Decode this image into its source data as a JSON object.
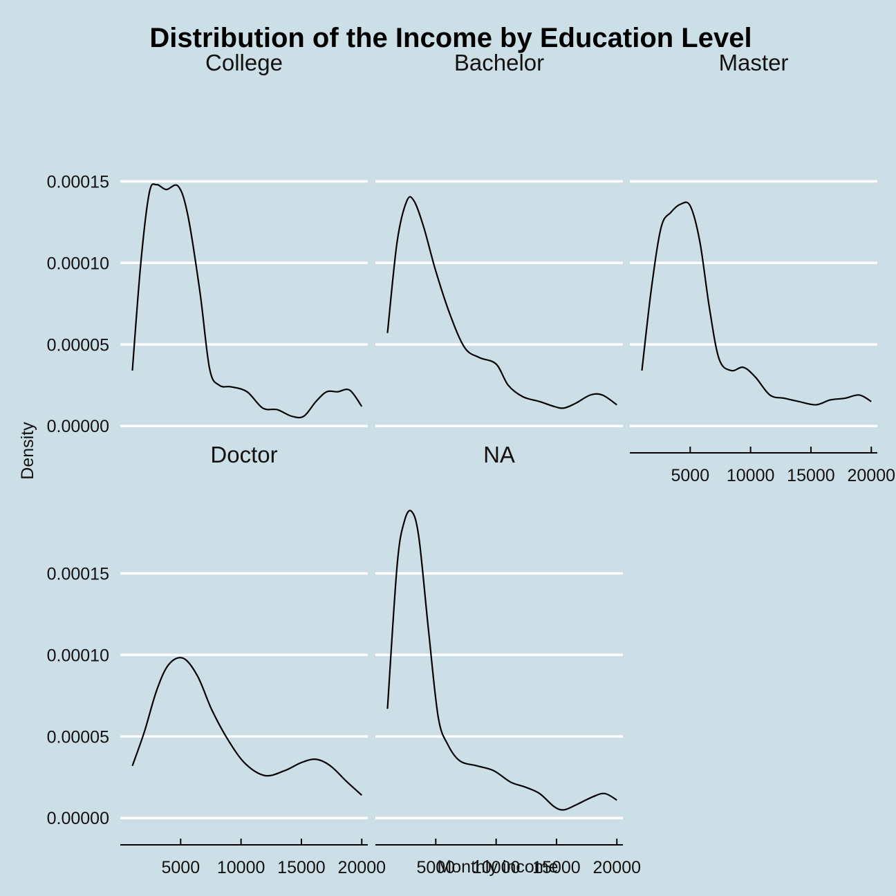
{
  "chart_data": {
    "type": "line",
    "title": "Distribution of the Income by Education Level",
    "xlabel": "Monthly income",
    "ylabel": "Density",
    "xlim": [
      0,
      20500
    ],
    "ylim": [
      -5e-06,
      0.00019
    ],
    "x_ticks": [
      5000,
      10000,
      15000,
      20000
    ],
    "x_tick_labels": [
      "5000",
      "10000",
      "15000",
      "20000"
    ],
    "y_ticks": [
      0,
      5e-05,
      0.0001,
      0.00015
    ],
    "y_tick_labels": [
      "0.00000",
      "0.00005",
      "0.00010",
      "0.00015"
    ],
    "grid": "horizontal major lines, white",
    "line_color": "#000000",
    "background_color": "#cddfe6",
    "grid_color": "#ffffff",
    "panels": [
      {
        "name": "College",
        "x": [
          1000,
          1700,
          2400,
          3000,
          3800,
          4800,
          5600,
          6600,
          7400,
          8200,
          9200,
          10500,
          11800,
          13000,
          14200,
          15200,
          16200,
          17100,
          18000,
          19000,
          20000
        ],
        "y": [
          3.4e-05,
          0.0001,
          0.000143,
          0.000148,
          0.000145,
          0.000147,
          0.000129,
          8.2e-05,
          3.5e-05,
          2.5e-05,
          2.4e-05,
          2.1e-05,
          1.1e-05,
          1e-05,
          6e-06,
          6e-06,
          1.5e-05,
          2.1e-05,
          2.1e-05,
          2.2e-05,
          1.2e-05
        ]
      },
      {
        "name": "Bachelor",
        "x": [
          1000,
          1800,
          2600,
          3200,
          4000,
          5000,
          6200,
          7400,
          8600,
          10000,
          11000,
          12200,
          13600,
          14800,
          15600,
          16600,
          17800,
          18800,
          20000
        ],
        "y": [
          5.7e-05,
          0.000113,
          0.000138,
          0.000138,
          0.000122,
          9.5e-05,
          6.8e-05,
          4.8e-05,
          4.2e-05,
          3.8e-05,
          2.5e-05,
          1.8e-05,
          1.5e-05,
          1.2e-05,
          1.1e-05,
          1.4e-05,
          1.9e-05,
          1.9e-05,
          1.3e-05
        ]
      },
      {
        "name": "Master",
        "x": [
          1000,
          1800,
          2600,
          3400,
          4200,
          5000,
          5800,
          6600,
          7400,
          8400,
          9400,
          10400,
          11600,
          12800,
          14000,
          15400,
          16600,
          17800,
          19000,
          20000
        ],
        "y": [
          3.4e-05,
          8.5e-05,
          0.000122,
          0.000131,
          0.000136,
          0.000135,
          0.000113,
          7.2e-05,
          4.1e-05,
          3.4e-05,
          3.6e-05,
          3e-05,
          1.9e-05,
          1.7e-05,
          1.5e-05,
          1.3e-05,
          1.6e-05,
          1.7e-05,
          1.9e-05,
          1.5e-05
        ]
      },
      {
        "name": "Doctor",
        "x": [
          1000,
          2000,
          3000,
          4000,
          5200,
          6400,
          7600,
          9000,
          10400,
          12000,
          13600,
          15000,
          16200,
          17400,
          18800,
          20000
        ],
        "y": [
          3.2e-05,
          5.3e-05,
          7.8e-05,
          9.4e-05,
          9.8e-05,
          8.7e-05,
          6.6e-05,
          4.7e-05,
          3.3e-05,
          2.6e-05,
          2.9e-05,
          3.4e-05,
          3.6e-05,
          3.2e-05,
          2.2e-05,
          1.4e-05
        ]
      },
      {
        "name": "NA",
        "x": [
          1000,
          1800,
          2400,
          3000,
          3600,
          4400,
          5200,
          6000,
          7000,
          8400,
          9800,
          11200,
          12400,
          13600,
          14800,
          15600,
          16600,
          18000,
          19000,
          20000
        ],
        "y": [
          6.7e-05,
          0.000155,
          0.000182,
          0.000188,
          0.000172,
          0.000115,
          6.2e-05,
          4.5e-05,
          3.5e-05,
          3.2e-05,
          2.9e-05,
          2.2e-05,
          1.9e-05,
          1.5e-05,
          7e-06,
          5e-06,
          8e-06,
          1.3e-05,
          1.5e-05,
          1.1e-05
        ]
      }
    ]
  }
}
